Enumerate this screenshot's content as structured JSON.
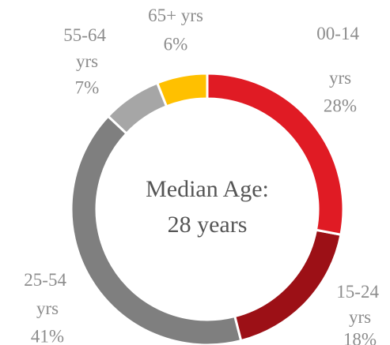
{
  "chart_data": {
    "type": "donut",
    "categories": [
      "00-14 yrs",
      "15-24 yrs",
      "25-54 yrs",
      "55-64 yrs",
      "65+ yrs"
    ],
    "values": [
      28,
      18,
      41,
      7,
      6
    ],
    "value_labels": [
      "28%",
      "18%",
      "41%",
      "7%",
      "6%"
    ],
    "colors": [
      "#e01b24",
      "#9c1016",
      "#7f7f7f",
      "#a6a6a6",
      "#ffc000"
    ],
    "center_label": [
      "Median Age:",
      "28 years"
    ]
  }
}
